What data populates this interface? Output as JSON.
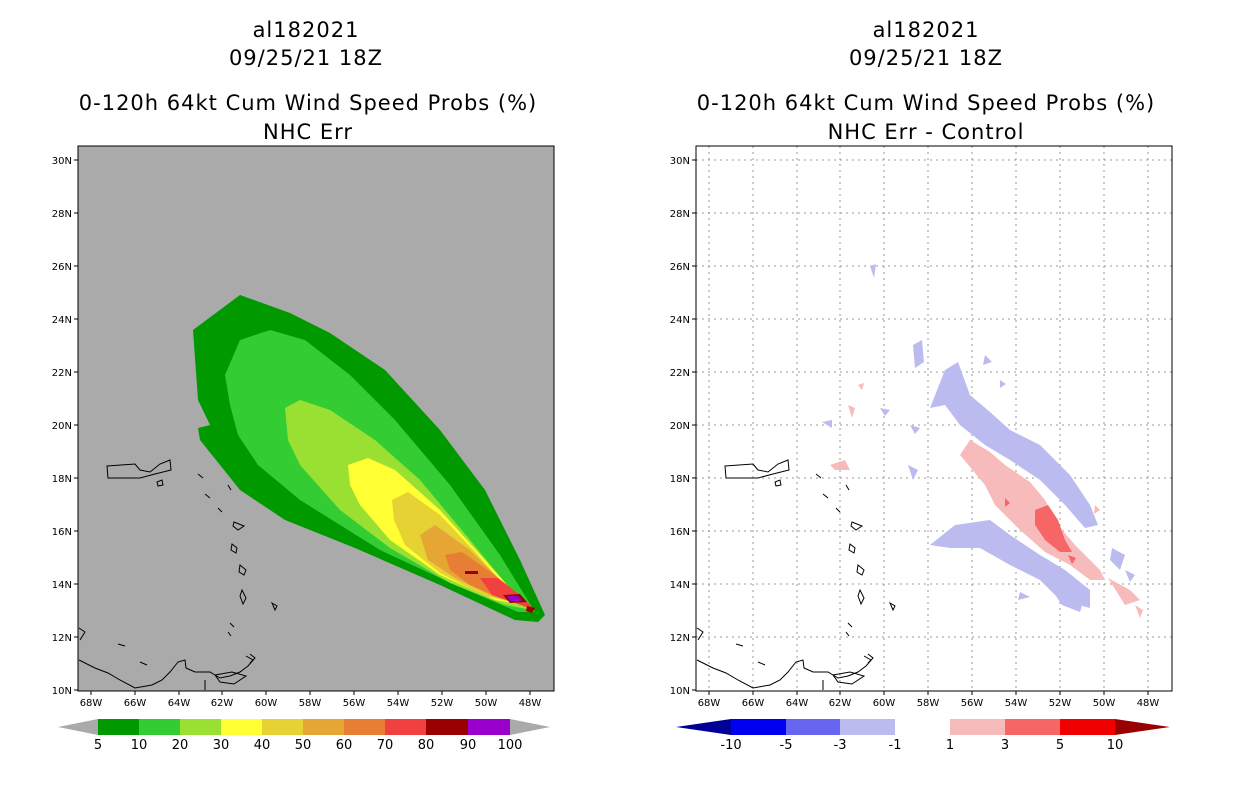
{
  "left": {
    "storm_id": "al182021",
    "datetime": "09/25/21 18Z",
    "title": "0-120h 64kt Cum Wind Speed Probs (%)",
    "subtitle": "NHC Err",
    "lat_ticks": [
      "30N",
      "28N",
      "26N",
      "24N",
      "22N",
      "20N",
      "18N",
      "16N",
      "14N",
      "12N",
      "10N"
    ],
    "lon_ticks": [
      "68W",
      "66W",
      "64W",
      "62W",
      "60W",
      "58W",
      "56W",
      "54W",
      "52W",
      "50W",
      "48W"
    ],
    "colorbar": {
      "labels": [
        "5",
        "10",
        "20",
        "30",
        "40",
        "50",
        "60",
        "70",
        "80",
        "90",
        "100"
      ],
      "colors": [
        "#009900",
        "#33cc33",
        "#99e033",
        "#ffff33",
        "#e6d233",
        "#e6a633",
        "#e67f33",
        "#f04040",
        "#990000",
        "#9900cc"
      ]
    }
  },
  "right": {
    "storm_id": "al182021",
    "datetime": "09/25/21 18Z",
    "title": "0-120h 64kt Cum Wind Speed Probs (%)",
    "subtitle": "NHC Err - Control",
    "lat_ticks": [
      "30N",
      "28N",
      "26N",
      "24N",
      "22N",
      "20N",
      "18N",
      "16N",
      "14N",
      "12N",
      "10N"
    ],
    "lon_ticks": [
      "68W",
      "66W",
      "64W",
      "62W",
      "60W",
      "58W",
      "56W",
      "54W",
      "52W",
      "50W",
      "48W"
    ],
    "colorbar": {
      "labels": [
        "-10",
        "-5",
        "-3",
        "-1",
        "1",
        "3",
        "5",
        "10"
      ],
      "colors": [
        "#000099",
        "#0000f0",
        "#6666f0",
        "#bbbbf0",
        "#ffffff",
        "#f7bbbb",
        "#f76666",
        "#f00000",
        "#990000"
      ]
    }
  }
}
